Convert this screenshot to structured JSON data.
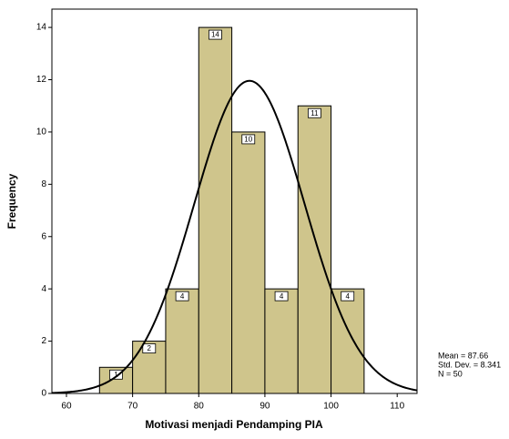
{
  "chart_data": {
    "type": "histogram",
    "x_label": "Motivasi menjadi Pendamping PIA",
    "y_label": "Frequency",
    "bins": [
      65,
      70,
      75,
      80,
      85,
      90,
      95,
      100,
      105
    ],
    "counts": [
      1,
      2,
      4,
      14,
      10,
      4,
      11,
      4
    ],
    "color": "#cfc58c",
    "xlim": [
      57.8,
      113
    ],
    "xticks": [
      60,
      70,
      80,
      90,
      100,
      110
    ],
    "ylim": [
      0,
      14.7
    ],
    "yticks": [
      0,
      2,
      4,
      6,
      8,
      10,
      12,
      14
    ],
    "normal_curve": true,
    "stats": [
      {
        "value": 87.66,
        "label": "Mean = 87.66"
      },
      {
        "value": 8.341,
        "label": "Std. Dev. = 8.341"
      },
      {
        "value": 50,
        "label": "N = 50"
      }
    ]
  }
}
